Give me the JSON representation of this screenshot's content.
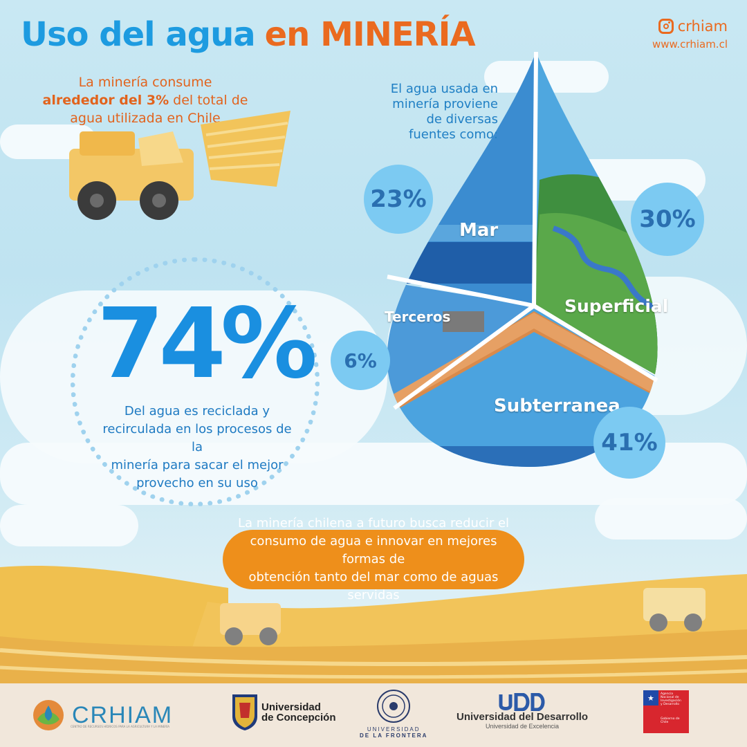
{
  "title": {
    "part1": "Uso del agua",
    "part2": "en MINERÍA"
  },
  "brand": {
    "instagram": "crhiam",
    "website": "www.crhiam.cl"
  },
  "intro": {
    "line1": "La minería consume",
    "bold": "alrededor del 3%",
    "line2": " del total de",
    "line3": "agua utilizada en Chile"
  },
  "sources": {
    "heading": [
      "El agua usada en",
      "minería proviene",
      "de diversas",
      "fuentes como:"
    ],
    "items": [
      {
        "label": "Mar",
        "percent": "23%"
      },
      {
        "label": "Superficial",
        "percent": "30%"
      },
      {
        "label": "Terceros",
        "percent": "6%"
      },
      {
        "label": "Subterranea",
        "percent": "41%"
      }
    ]
  },
  "recycling": {
    "percent": "74%",
    "text": [
      "Del agua es reciclada y",
      "recirculada en los procesos de la",
      "minería para sacar el mejor",
      "provecho en su uso"
    ]
  },
  "future": {
    "text": [
      "La minería chilena a futuro busca reducir el",
      "consumo de agua e innovar en mejores formas de",
      "obtención tanto del mar como de aguas servidas"
    ]
  },
  "footer": {
    "crhiam": {
      "name": "CRHIAM",
      "subtitle": "CENTRO DE RECURSOS HÍDRICOS PARA LA AGRICULTURA Y LA MINERÍA"
    },
    "udec": {
      "line1": "Universidad",
      "line2": "de Concepción"
    },
    "ufro": {
      "line1": "UNIVERSIDAD",
      "line2": "DE LA FRONTERA"
    },
    "udd": {
      "mark": "UDD",
      "name": "Universidad del Desarrollo",
      "tagline": "Universidad de Excelencia"
    },
    "anid": {
      "lines": [
        "Agencia",
        "Nacional de",
        "Investigación",
        "y Desarrollo"
      ],
      "footer": "Gobierno de Chile"
    }
  },
  "colors": {
    "blue": "#1d9be0",
    "orange": "#ea6a1f",
    "badge": "#7ccaf2",
    "future_bg": "#ee8f1b",
    "sand": "#f2c45a"
  }
}
